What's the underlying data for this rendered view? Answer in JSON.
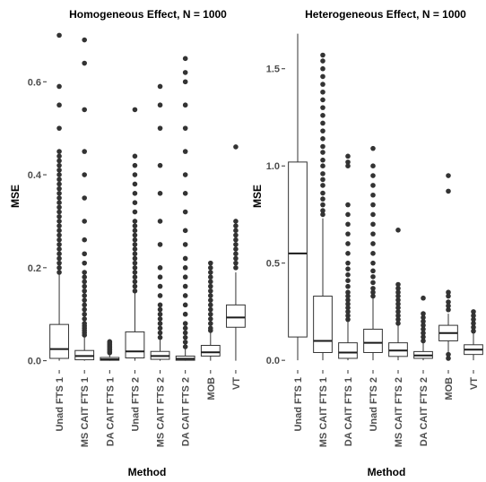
{
  "chart_data": [
    {
      "type": "box",
      "title": "Homogeneous Effect, N = 1000",
      "xlabel": "Method",
      "ylabel": "MSE",
      "ylim": [
        -0.02,
        0.72
      ],
      "yticks": [
        0.0,
        0.2,
        0.4,
        0.6
      ],
      "ytick_labels": [
        "0.0",
        "0.2",
        "0.4",
        "0.6"
      ],
      "grid": false,
      "categories": [
        "Unad FTS 1",
        "MS CAIT FTS 1",
        "DA CAIT FTS 1",
        "Unad FTS 2",
        "MS CAIT FTS 2",
        "DA CAIT FTS 2",
        "MOB",
        "VT"
      ],
      "boxes": [
        {
          "min": 0.0,
          "q1": 0.005,
          "median": 0.025,
          "q3": 0.078,
          "max": 0.185,
          "outliers": [
            0.19,
            0.2,
            0.21,
            0.22,
            0.23,
            0.24,
            0.25,
            0.26,
            0.27,
            0.28,
            0.29,
            0.3,
            0.31,
            0.32,
            0.33,
            0.34,
            0.35,
            0.36,
            0.37,
            0.38,
            0.39,
            0.4,
            0.41,
            0.42,
            0.43,
            0.44,
            0.45,
            0.5,
            0.55,
            0.59,
            0.7
          ]
        },
        {
          "min": 0.0,
          "q1": 0.002,
          "median": 0.01,
          "q3": 0.022,
          "max": 0.05,
          "outliers": [
            0.055,
            0.06,
            0.065,
            0.07,
            0.075,
            0.08,
            0.09,
            0.1,
            0.11,
            0.12,
            0.13,
            0.14,
            0.15,
            0.16,
            0.17,
            0.18,
            0.19,
            0.21,
            0.23,
            0.26,
            0.3,
            0.35,
            0.4,
            0.45,
            0.54,
            0.64,
            0.69
          ]
        },
        {
          "min": 0.0,
          "q1": 0.001,
          "median": 0.003,
          "q3": 0.007,
          "max": 0.015,
          "outliers": [
            0.017,
            0.02,
            0.023,
            0.026,
            0.029,
            0.032,
            0.035,
            0.038,
            0.041
          ]
        },
        {
          "min": 0.0,
          "q1": 0.006,
          "median": 0.02,
          "q3": 0.062,
          "max": 0.145,
          "outliers": [
            0.15,
            0.16,
            0.17,
            0.18,
            0.19,
            0.2,
            0.21,
            0.22,
            0.23,
            0.24,
            0.25,
            0.26,
            0.27,
            0.28,
            0.29,
            0.3,
            0.32,
            0.34,
            0.36,
            0.38,
            0.4,
            0.42,
            0.44,
            0.54
          ]
        },
        {
          "min": 0.0,
          "q1": 0.003,
          "median": 0.01,
          "q3": 0.02,
          "max": 0.045,
          "outliers": [
            0.05,
            0.06,
            0.07,
            0.08,
            0.09,
            0.1,
            0.11,
            0.12,
            0.14,
            0.16,
            0.18,
            0.2,
            0.25,
            0.3,
            0.36,
            0.42,
            0.5,
            0.55,
            0.59
          ]
        },
        {
          "min": 0.0,
          "q1": 0.001,
          "median": 0.004,
          "q3": 0.01,
          "max": 0.025,
          "outliers": [
            0.03,
            0.04,
            0.05,
            0.06,
            0.07,
            0.08,
            0.1,
            0.12,
            0.14,
            0.16,
            0.18,
            0.2,
            0.22,
            0.25,
            0.28,
            0.32,
            0.36,
            0.4,
            0.45,
            0.5,
            0.55,
            0.6,
            0.62,
            0.65
          ]
        },
        {
          "min": 0.0,
          "q1": 0.01,
          "median": 0.018,
          "q3": 0.033,
          "max": 0.06,
          "outliers": [
            0.065,
            0.07,
            0.08,
            0.09,
            0.1,
            0.11,
            0.12,
            0.13,
            0.14,
            0.15,
            0.16,
            0.17,
            0.18,
            0.19,
            0.2,
            0.21
          ]
        },
        {
          "min": 0.0,
          "q1": 0.072,
          "median": 0.093,
          "q3": 0.12,
          "max": 0.19,
          "outliers": [
            0.2,
            0.21,
            0.22,
            0.23,
            0.24,
            0.25,
            0.26,
            0.27,
            0.28,
            0.29,
            0.3,
            0.46
          ]
        }
      ]
    },
    {
      "type": "box",
      "title": "Heterogeneous Effect, N = 1000",
      "xlabel": "Method",
      "ylabel": "MSE",
      "ylim": [
        -0.05,
        1.72
      ],
      "yticks": [
        0.0,
        0.5,
        1.0,
        1.5
      ],
      "ytick_labels": [
        "0.0",
        "0.5",
        "1.0",
        "1.5"
      ],
      "grid": false,
      "categories": [
        "Unad FTS 1",
        "MS CAIT FTS 1",
        "DA CAIT FTS 1",
        "Unad FTS 2",
        "MS CAIT FTS 2",
        "DA CAIT FTS 2",
        "MOB",
        "VT"
      ],
      "boxes": [
        {
          "min": 0.0,
          "q1": 0.12,
          "median": 0.55,
          "q3": 1.02,
          "max": 1.68,
          "outliers": []
        },
        {
          "min": 0.0,
          "q1": 0.04,
          "median": 0.1,
          "q3": 0.33,
          "max": 0.73,
          "outliers": [
            0.75,
            0.77,
            0.8,
            0.83,
            0.86,
            0.9,
            0.93,
            0.96,
            1.0,
            1.03,
            1.07,
            1.1,
            1.14,
            1.18,
            1.22,
            1.26,
            1.3,
            1.34,
            1.38,
            1.42,
            1.46,
            1.5,
            1.54,
            1.57
          ]
        },
        {
          "min": 0.0,
          "q1": 0.01,
          "median": 0.04,
          "q3": 0.09,
          "max": 0.2,
          "outliers": [
            0.21,
            0.23,
            0.25,
            0.27,
            0.29,
            0.31,
            0.33,
            0.35,
            0.38,
            0.41,
            0.44,
            0.47,
            0.5,
            0.55,
            0.6,
            0.65,
            0.7,
            0.75,
            0.8,
            1.0,
            1.02,
            1.05
          ]
        },
        {
          "min": 0.0,
          "q1": 0.04,
          "median": 0.09,
          "q3": 0.16,
          "max": 0.32,
          "outliers": [
            0.33,
            0.35,
            0.37,
            0.4,
            0.43,
            0.46,
            0.5,
            0.55,
            0.6,
            0.65,
            0.7,
            0.75,
            0.8,
            0.85,
            0.9,
            0.95,
            1.0,
            1.09
          ]
        },
        {
          "min": 0.0,
          "q1": 0.02,
          "median": 0.05,
          "q3": 0.09,
          "max": 0.18,
          "outliers": [
            0.19,
            0.21,
            0.23,
            0.25,
            0.27,
            0.29,
            0.31,
            0.33,
            0.35,
            0.37,
            0.39,
            0.67
          ]
        },
        {
          "min": 0.0,
          "q1": 0.01,
          "median": 0.025,
          "q3": 0.045,
          "max": 0.09,
          "outliers": [
            0.1,
            0.12,
            0.14,
            0.16,
            0.18,
            0.2,
            0.22,
            0.24,
            0.32
          ]
        },
        {
          "min": 0.0,
          "q1": 0.1,
          "median": 0.14,
          "q3": 0.18,
          "max": 0.24,
          "outliers": [
            0.01,
            0.03,
            0.26,
            0.28,
            0.3,
            0.33,
            0.35,
            0.87,
            0.95
          ]
        },
        {
          "min": 0.0,
          "q1": 0.03,
          "median": 0.055,
          "q3": 0.08,
          "max": 0.14,
          "outliers": [
            0.15,
            0.17,
            0.19,
            0.21,
            0.23,
            0.25
          ]
        }
      ]
    }
  ]
}
